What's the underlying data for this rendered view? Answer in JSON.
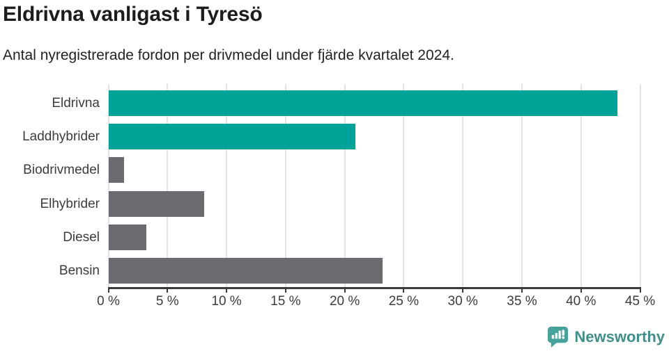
{
  "header": {
    "title": "Eldrivna vanligast i Tyresö",
    "subtitle": "Antal nyregistrerade fordon per drivmedel under fjärde kvartalet 2024."
  },
  "chart_data": {
    "type": "bar",
    "orientation": "horizontal",
    "title": "Eldrivna vanligast i Tyresö",
    "subtitle": "Antal nyregistrerade fordon per drivmedel under fjärde kvartalet 2024.",
    "categories": [
      "Eldrivna",
      "Laddhybrider",
      "Biodrivmedel",
      "Elhybrider",
      "Diesel",
      "Bensin"
    ],
    "values": [
      43.1,
      20.9,
      1.3,
      8.1,
      3.2,
      23.2
    ],
    "unit": "%",
    "xlim": [
      0,
      45
    ],
    "x_ticks": [
      0,
      5,
      10,
      15,
      20,
      25,
      30,
      35,
      40,
      45
    ],
    "x_tick_labels": [
      "0 %",
      "5 %",
      "10 %",
      "15 %",
      "20 %",
      "25 %",
      "30 %",
      "35 %",
      "40 %",
      "45 %"
    ],
    "bar_colors": [
      "#00a398",
      "#00a398",
      "#6c6b72",
      "#6c6b72",
      "#6c6b72",
      "#6c6b72"
    ],
    "highlight_color": "#00a398",
    "default_color": "#6c6b72",
    "gridline_color": "#e4e4e4",
    "axis_color": "#3a3a3a",
    "grid": true,
    "legend": "none"
  },
  "footer": {
    "brand": "Newsworthy",
    "brand_color": "#3f8f8b",
    "logo_icon": "newsworthy-speech-bubble-bar-chart-icon",
    "logo_color": "#45a39c"
  }
}
